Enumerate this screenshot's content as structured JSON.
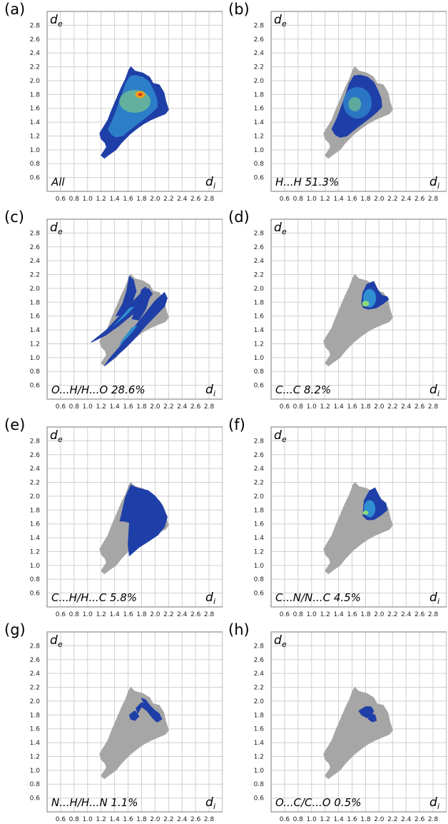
{
  "chart_data": [
    {
      "type": "heatmap",
      "panel_label": "(a)",
      "annotation": "All",
      "ylabel": "d",
      "ylabel_sub": "e",
      "xlabel": "d",
      "xlabel_sub": "i",
      "xlim": [
        0.4,
        3.0
      ],
      "ylim": [
        0.4,
        3.0
      ],
      "x_ticks": [
        "0.6",
        "0.8",
        "1.0",
        "1.2",
        "1.4",
        "1.6",
        "1.8",
        "2.0",
        "2.2",
        "2.4",
        "2.6",
        "2.8"
      ],
      "y_ticks": [
        "0.6",
        "0.8",
        "1.0",
        "1.2",
        "1.4",
        "1.6",
        "1.8",
        "2.0",
        "2.2",
        "2.4",
        "2.6",
        "2.8"
      ],
      "region": "all",
      "hotspot": {
        "di": 1.78,
        "de": 1.8
      }
    },
    {
      "type": "heatmap",
      "panel_label": "(b)",
      "annotation": "H...H 51.3%",
      "ylabel": "d",
      "ylabel_sub": "e",
      "xlabel": "d",
      "xlabel_sub": "i",
      "xlim": [
        0.4,
        3.0
      ],
      "ylim": [
        0.4,
        3.0
      ],
      "x_ticks": [
        "0.6",
        "0.8",
        "1.0",
        "1.2",
        "1.4",
        "1.6",
        "1.8",
        "2.0",
        "2.2",
        "2.4",
        "2.6",
        "2.8"
      ],
      "y_ticks": [
        "0.6",
        "0.8",
        "1.0",
        "1.2",
        "1.4",
        "1.6",
        "1.8",
        "2.0",
        "2.2",
        "2.4",
        "2.6",
        "2.8"
      ],
      "region": "hh",
      "contribution_percent": 51.3
    },
    {
      "type": "heatmap",
      "panel_label": "(c)",
      "annotation": "O...H/H...O 28.6%",
      "ylabel": "d",
      "ylabel_sub": "e",
      "xlabel": "d",
      "xlabel_sub": "i",
      "xlim": [
        0.4,
        3.0
      ],
      "ylim": [
        0.4,
        3.0
      ],
      "x_ticks": [
        "0.6",
        "0.8",
        "1.0",
        "1.2",
        "1.4",
        "1.6",
        "1.8",
        "2.0",
        "2.2",
        "2.4",
        "2.6",
        "2.8"
      ],
      "y_ticks": [
        "0.6",
        "0.8",
        "1.0",
        "1.2",
        "1.4",
        "1.6",
        "1.8",
        "2.0",
        "2.2",
        "2.4",
        "2.6",
        "2.8"
      ],
      "region": "oh",
      "contribution_percent": 28.6
    },
    {
      "type": "heatmap",
      "panel_label": "(d)",
      "annotation": "C...C 8.2%",
      "ylabel": "d",
      "ylabel_sub": "e",
      "xlabel": "d",
      "xlabel_sub": "i",
      "xlim": [
        0.4,
        3.0
      ],
      "ylim": [
        0.4,
        3.0
      ],
      "x_ticks": [
        "0.6",
        "0.8",
        "1.0",
        "1.2",
        "1.4",
        "1.6",
        "1.8",
        "2.0",
        "2.2",
        "2.4",
        "2.6",
        "2.8"
      ],
      "y_ticks": [
        "0.6",
        "0.8",
        "1.0",
        "1.2",
        "1.4",
        "1.6",
        "1.8",
        "2.0",
        "2.2",
        "2.4",
        "2.6",
        "2.8"
      ],
      "region": "cc",
      "contribution_percent": 8.2
    },
    {
      "type": "heatmap",
      "panel_label": "(e)",
      "annotation": "C...H/H...C 5.8%",
      "ylabel": "d",
      "ylabel_sub": "e",
      "xlabel": "d",
      "xlabel_sub": "i",
      "xlim": [
        0.4,
        3.0
      ],
      "ylim": [
        0.4,
        3.0
      ],
      "x_ticks": [
        "0.6",
        "0.8",
        "1.0",
        "1.2",
        "1.4",
        "1.6",
        "1.8",
        "2.0",
        "2.2",
        "2.4",
        "2.6",
        "2.8"
      ],
      "y_ticks": [
        "0.6",
        "0.8",
        "1.0",
        "1.2",
        "1.4",
        "1.6",
        "1.8",
        "2.0",
        "2.2",
        "2.4",
        "2.6",
        "2.8"
      ],
      "region": "ch",
      "contribution_percent": 5.8
    },
    {
      "type": "heatmap",
      "panel_label": "(f)",
      "annotation": "C...N/N...C 4.5%",
      "ylabel": "d",
      "ylabel_sub": "e",
      "xlabel": "d",
      "xlabel_sub": "i",
      "xlim": [
        0.4,
        3.0
      ],
      "ylim": [
        0.4,
        3.0
      ],
      "x_ticks": [
        "0.6",
        "0.8",
        "1.0",
        "1.2",
        "1.4",
        "1.6",
        "1.8",
        "2.0",
        "2.2",
        "2.4",
        "2.6",
        "2.8"
      ],
      "y_ticks": [
        "0.6",
        "0.8",
        "1.0",
        "1.2",
        "1.4",
        "1.6",
        "1.8",
        "2.0",
        "2.2",
        "2.4",
        "2.6",
        "2.8"
      ],
      "region": "cn",
      "contribution_percent": 4.5
    },
    {
      "type": "heatmap",
      "panel_label": "(g)",
      "annotation": "N...H/H...N 1.1%",
      "ylabel": "d",
      "ylabel_sub": "e",
      "xlabel": "d",
      "xlabel_sub": "i",
      "xlim": [
        0.4,
        3.0
      ],
      "ylim": [
        0.4,
        3.0
      ],
      "x_ticks": [
        "0.6",
        "0.8",
        "1.0",
        "1.2",
        "1.4",
        "1.6",
        "1.8",
        "2.0",
        "2.2",
        "2.4",
        "2.6",
        "2.8"
      ],
      "y_ticks": [
        "0.6",
        "0.8",
        "1.0",
        "1.2",
        "1.4",
        "1.6",
        "1.8",
        "2.0",
        "2.2",
        "2.4",
        "2.6",
        "2.8"
      ],
      "region": "nh",
      "contribution_percent": 1.1
    },
    {
      "type": "heatmap",
      "panel_label": "(h)",
      "annotation": "O...C/C...O 0.5%",
      "ylabel": "d",
      "ylabel_sub": "e",
      "xlabel": "d",
      "xlabel_sub": "i",
      "xlim": [
        0.4,
        3.0
      ],
      "ylim": [
        0.4,
        3.0
      ],
      "x_ticks": [
        "0.6",
        "0.8",
        "1.0",
        "1.2",
        "1.4",
        "1.6",
        "1.8",
        "2.0",
        "2.2",
        "2.4",
        "2.6",
        "2.8"
      ],
      "y_ticks": [
        "0.6",
        "0.8",
        "1.0",
        "1.2",
        "1.4",
        "1.6",
        "1.8",
        "2.0",
        "2.2",
        "2.4",
        "2.6",
        "2.8"
      ],
      "region": "oc",
      "contribution_percent": 0.5
    }
  ],
  "colors": {
    "full_fingerprint": "#a6a6a6",
    "density_low": "#1f3fa8",
    "density_mid": "#2f8fd0",
    "density_high": "#8fd97a",
    "density_peak": "#f0a020",
    "grid": "#cfcfcf"
  }
}
